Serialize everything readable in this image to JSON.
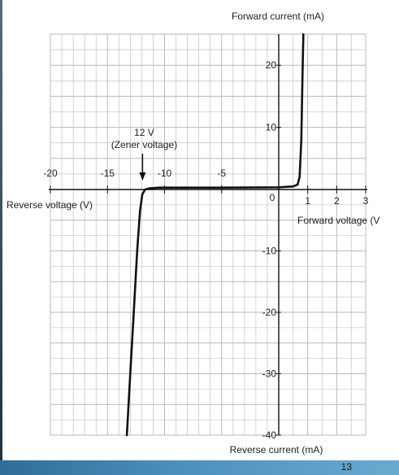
{
  "chart_data": {
    "type": "line",
    "title": "",
    "xlabel_positive": "Forward voltage (V",
    "xlabel_negative": "Reverse voltage (V)",
    "ylabel_positive": "Forward current (mA)",
    "ylabel_negative": "Reverse current (mA)",
    "xlim": [
      -20,
      3
    ],
    "ylim": [
      -40,
      25
    ],
    "x_ticks": [
      {
        "value": -20,
        "label": "-20"
      },
      {
        "value": -15,
        "label": "-15"
      },
      {
        "value": -10,
        "label": "-10"
      },
      {
        "value": -5,
        "label": "-5"
      },
      {
        "value": 0,
        "label": "0"
      },
      {
        "value": 1,
        "label": "1"
      },
      {
        "value": 2,
        "label": "2"
      },
      {
        "value": 3,
        "label": "3"
      }
    ],
    "y_ticks": [
      {
        "value": 20,
        "label": "20"
      },
      {
        "value": 10,
        "label": "10"
      },
      {
        "value": -10,
        "label": "-10"
      },
      {
        "value": -20,
        "label": "-20"
      },
      {
        "value": -30,
        "label": "-30"
      },
      {
        "value": -40,
        "label": "-40"
      }
    ],
    "grid": true,
    "series": [
      {
        "x": [
          -13.3,
          -13.0,
          -12.7,
          -12.4,
          -12.15,
          -11.95,
          -11.7,
          -11.3,
          -10.5,
          -5,
          0,
          0.5,
          0.65,
          0.72,
          0.78,
          0.82,
          0.85
        ],
        "y": [
          -40,
          -30,
          -20,
          -10,
          -3.5,
          -0.8,
          0.0,
          0.2,
          0.3,
          0.3,
          0.35,
          0.5,
          0.8,
          2.0,
          8.0,
          18.0,
          25.0
        ]
      }
    ],
    "annotations": [
      {
        "line1": "12 V",
        "line2": "(Zener voltage)",
        "x": -12,
        "y": 0
      }
    ],
    "line_color": "#111111",
    "grid_color": "#b9b9b9"
  },
  "footer": {
    "page_number": "13"
  }
}
